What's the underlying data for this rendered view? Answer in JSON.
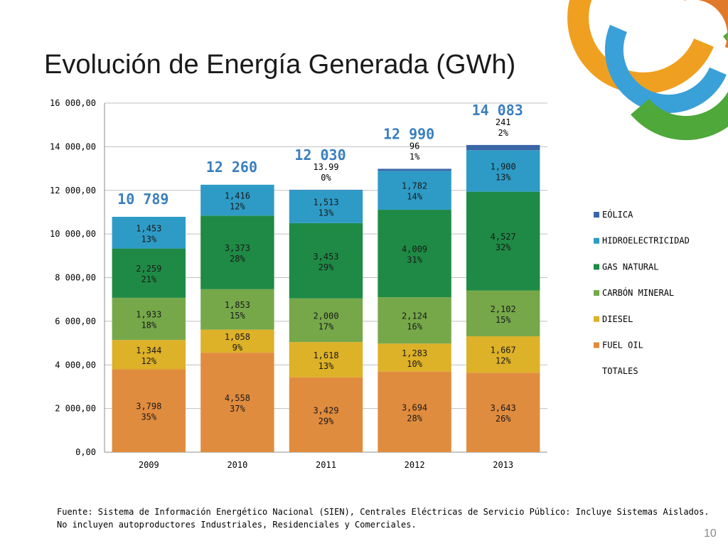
{
  "slide": {
    "title": "Evolución de Energía Generada (GWh)",
    "footnote_line1": "Fuente: Sistema de Información Energético Nacional (SIEN), Centrales  Eléctricas de Servicio Público: Incluye Sistemas Aislados.",
    "footnote_line2": "No incluyen autoproductores Industriales, Residenciales y Comerciales.",
    "page_number": "10"
  },
  "chart_data": {
    "type": "bar",
    "stacked": true,
    "categories": [
      "2009",
      "2010",
      "2011",
      "2012",
      "2013"
    ],
    "ylim": [
      0,
      16000
    ],
    "yticks": [
      0,
      2000,
      4000,
      6000,
      8000,
      10000,
      12000,
      14000,
      16000
    ],
    "ytick_labels": [
      "0,00",
      "2 000,00",
      "4 000,00",
      "6 000,00",
      "8 000,00",
      "10 000,00",
      "12 000,00",
      "14 000,00",
      "16 000,00"
    ],
    "grid": true,
    "legend_position": "right",
    "series": [
      {
        "name": "FUEL OIL",
        "color": "#e08c3e",
        "values": [
          3798,
          4558,
          3429,
          3694,
          3643
        ],
        "value_labels": [
          "3,798",
          "4,558",
          "3,429",
          "3,694",
          "3,643"
        ],
        "pct_labels": [
          "35%",
          "37%",
          "29%",
          "28%",
          "26%"
        ]
      },
      {
        "name": "DIESEL",
        "color": "#ddb128",
        "values": [
          1344,
          1058,
          1618,
          1283,
          1667
        ],
        "value_labels": [
          "1,344",
          "1,058",
          "1,618",
          "1,283",
          "1,667"
        ],
        "pct_labels": [
          "12%",
          "9%",
          "13%",
          "10%",
          "12%"
        ]
      },
      {
        "name": "CARBÓN MINERAL",
        "color": "#76a84a",
        "values": [
          1933,
          1853,
          2000,
          2124,
          2102
        ],
        "value_labels": [
          "1,933",
          "1,853",
          "2,000",
          "2,124",
          "2,102"
        ],
        "pct_labels": [
          "18%",
          "15%",
          "17%",
          "16%",
          "15%"
        ]
      },
      {
        "name": "GAS NATURAL",
        "color": "#1e8a45",
        "values": [
          2259,
          3373,
          3453,
          4009,
          4527
        ],
        "value_labels": [
          "2,259",
          "3,373",
          "3,453",
          "4,009",
          "4,527"
        ],
        "pct_labels": [
          "21%",
          "28%",
          "29%",
          "31%",
          "32%"
        ]
      },
      {
        "name": "HIDROELECTRICIDAD",
        "color": "#2e9bc6",
        "values": [
          1453,
          1416,
          1513,
          1782,
          1900
        ],
        "value_labels": [
          "1,453",
          "1,416",
          "1,513",
          "1,782",
          "1,900"
        ],
        "pct_labels": [
          "13%",
          "12%",
          "13%",
          "14%",
          "13%"
        ]
      },
      {
        "name": "EÓLICA",
        "color": "#3a66a6",
        "values": [
          0,
          0,
          14,
          96,
          241
        ],
        "value_labels": [
          "",
          "",
          "13.99",
          "96",
          "241"
        ],
        "pct_labels": [
          "",
          "",
          "0%",
          "1%",
          "2%"
        ]
      }
    ],
    "totals_label": "TOTALES",
    "totals": [
      10789,
      12260,
      12030,
      12990,
      14083
    ],
    "total_labels": [
      "10 789",
      "12 260",
      "12 030",
      "12 990",
      "14 083"
    ],
    "total_color": "#3a7fbf"
  }
}
